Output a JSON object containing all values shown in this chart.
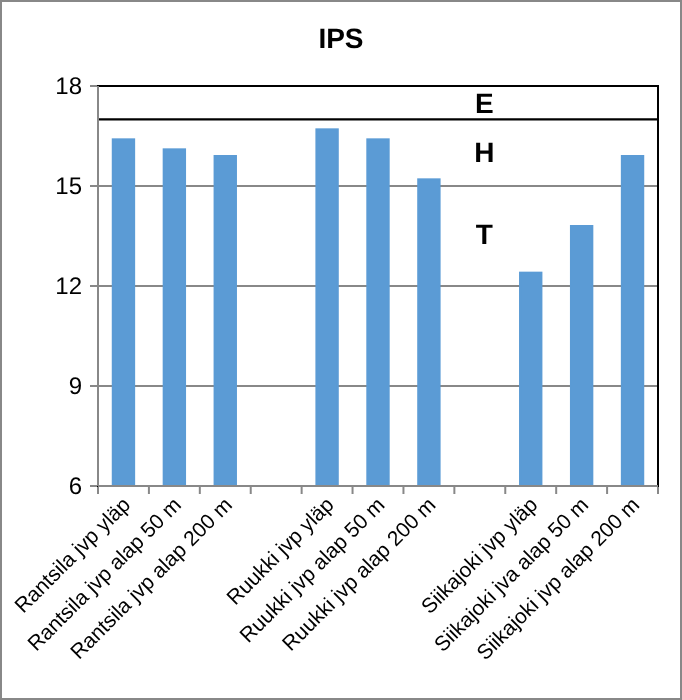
{
  "chart_data": {
    "type": "bar",
    "title": "IPS",
    "categories": [
      "Rantsila jvp yläp",
      "Rantsila jvp alap 50 m",
      "Rantsila jvp alap 200 m",
      null,
      "Ruukki jvp yläp",
      "Ruukki jvp alap 50 m",
      "Ruukki jvp alap 200 m",
      null,
      "Siikajoki jvp yläp",
      "Siikajoki jva alap 50 m",
      "Siikajoki jvp alap 200 m"
    ],
    "values": [
      16.4,
      16.1,
      15.9,
      null,
      16.7,
      16.4,
      15.2,
      null,
      12.4,
      13.8,
      15.9
    ],
    "color": "#5b9bd5",
    "ylim": [
      6,
      18
    ],
    "yticks": [
      6,
      9,
      12,
      15,
      18
    ],
    "grid": "y",
    "ref_lines": [
      {
        "axis": "y",
        "value": 17,
        "color": "#000000"
      }
    ],
    "annotations": [
      "E",
      "H",
      "T"
    ]
  }
}
